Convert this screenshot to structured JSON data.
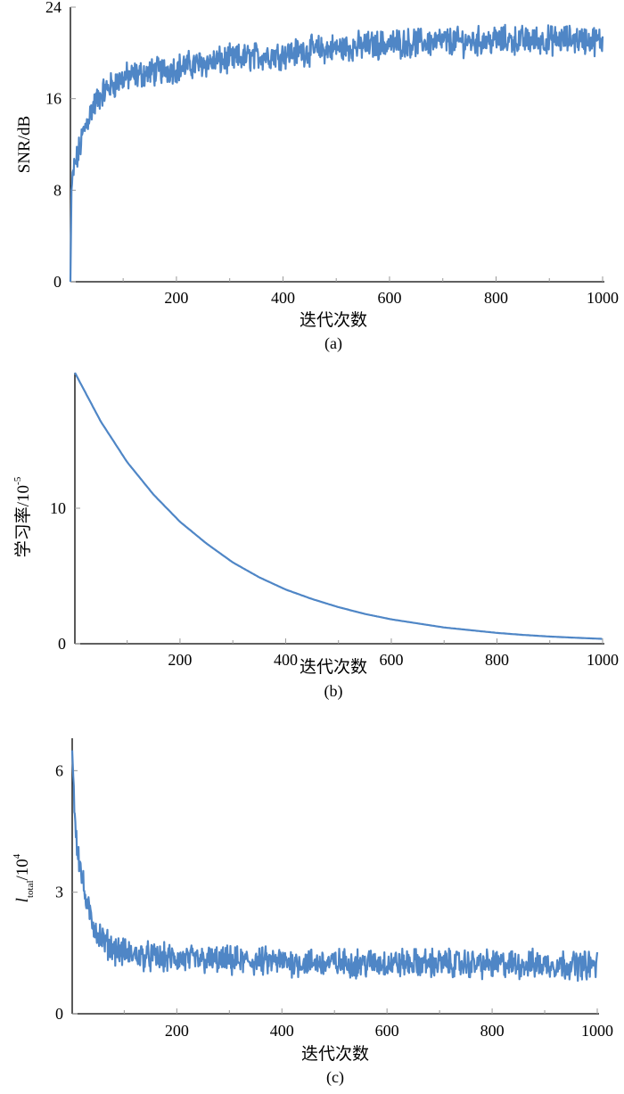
{
  "chart_data": [
    {
      "type": "line",
      "caption": "(a)",
      "xlabel": "迭代次数",
      "ylabel": "SNR/dB",
      "xlim": [
        1,
        1000
      ],
      "ylim": [
        0,
        24
      ],
      "xticks": [
        200,
        400,
        600,
        800,
        1000
      ],
      "yticks": [
        0,
        8,
        16,
        24
      ],
      "grid": false,
      "series_color": "#4f86c6",
      "series": [
        {
          "noise": 1.0,
          "points": [
            [
              1,
              0
            ],
            [
              3,
              8
            ],
            [
              8,
              10
            ],
            [
              15,
              11
            ],
            [
              25,
              13
            ],
            [
              40,
              15
            ],
            [
              60,
              16.5
            ],
            [
              80,
              17.2
            ],
            [
              100,
              17.8
            ],
            [
              150,
              18.3
            ],
            [
              200,
              18.7
            ],
            [
              250,
              19.1
            ],
            [
              300,
              19.4
            ],
            [
              350,
              19.7
            ],
            [
              400,
              19.9
            ],
            [
              450,
              20.2
            ],
            [
              500,
              20.4
            ],
            [
              550,
              20.6
            ],
            [
              600,
              20.8
            ],
            [
              650,
              20.9
            ],
            [
              700,
              21
            ],
            [
              750,
              21
            ],
            [
              800,
              21.1
            ],
            [
              850,
              21.1
            ],
            [
              900,
              21.1
            ],
            [
              950,
              21.2
            ],
            [
              1000,
              21
            ]
          ]
        }
      ]
    },
    {
      "type": "line",
      "caption": "(b)",
      "xlabel": "迭代次数",
      "ylabel_main": "学习率",
      "ylabel_unit": "/10",
      "ylabel_exp": "-5",
      "xlim": [
        1,
        1000
      ],
      "ylim": [
        0,
        20
      ],
      "xticks": [
        200,
        400,
        600,
        800,
        1000
      ],
      "yticks": [
        0,
        10
      ],
      "grid": false,
      "series_color": "#4f86c6",
      "series": [
        {
          "noise": 0,
          "points": [
            [
              1,
              20
            ],
            [
              50,
              16.4
            ],
            [
              100,
              13.4
            ],
            [
              150,
              11
            ],
            [
              200,
              9
            ],
            [
              250,
              7.4
            ],
            [
              300,
              6
            ],
            [
              350,
              4.9
            ],
            [
              400,
              4
            ],
            [
              450,
              3.3
            ],
            [
              500,
              2.7
            ],
            [
              550,
              2.2
            ],
            [
              600,
              1.8
            ],
            [
              650,
              1.5
            ],
            [
              700,
              1.2
            ],
            [
              750,
              1
            ],
            [
              800,
              0.8
            ],
            [
              850,
              0.65
            ],
            [
              900,
              0.53
            ],
            [
              950,
              0.44
            ],
            [
              1000,
              0.36
            ]
          ]
        }
      ]
    },
    {
      "type": "line",
      "caption": "(c)",
      "xlabel": "迭代次数",
      "ylabel_main": "l",
      "ylabel_sub": "total",
      "ylabel_unit": "/10",
      "ylabel_exp": "4",
      "xlim": [
        1,
        1000
      ],
      "ylim": [
        0,
        6.8
      ],
      "xticks": [
        200,
        400,
        600,
        800,
        1000
      ],
      "yticks": [
        0,
        3,
        6
      ],
      "grid": false,
      "series_color": "#4f86c6",
      "series": [
        {
          "noise": 0.28,
          "points": [
            [
              1,
              6.5
            ],
            [
              5,
              5.2
            ],
            [
              10,
              4.2
            ],
            [
              20,
              3.3
            ],
            [
              30,
              2.6
            ],
            [
              45,
              2.1
            ],
            [
              60,
              1.8
            ],
            [
              80,
              1.6
            ],
            [
              100,
              1.5
            ],
            [
              150,
              1.4
            ],
            [
              200,
              1.35
            ],
            [
              300,
              1.3
            ],
            [
              400,
              1.28
            ],
            [
              500,
              1.25
            ],
            [
              600,
              1.25
            ],
            [
              700,
              1.25
            ],
            [
              800,
              1.22
            ],
            [
              900,
              1.22
            ],
            [
              1000,
              1.2
            ]
          ]
        }
      ]
    }
  ]
}
